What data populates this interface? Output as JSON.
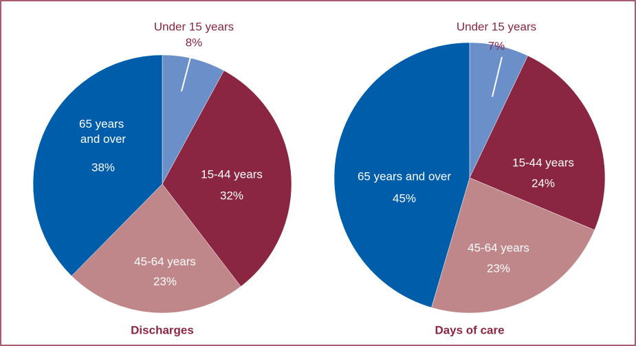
{
  "chart_data": [
    {
      "type": "pie",
      "title": "Discharges",
      "categories": [
        "Under 15 years",
        "15-44 years",
        "45-64 years",
        "65 years and over"
      ],
      "values": [
        8,
        32,
        23,
        38
      ],
      "value_labels": [
        "8%",
        "32%",
        "23%",
        "38%"
      ],
      "colors": [
        "#6a8fc9",
        "#8a2642",
        "#c0878b",
        "#005da9"
      ]
    },
    {
      "type": "pie",
      "title": "Days of care",
      "categories": [
        "Under 15 years",
        "15-44 years",
        "45-64 years",
        "65 years and over"
      ],
      "values": [
        7,
        24,
        23,
        45
      ],
      "value_labels": [
        "7%",
        "24%",
        "23%",
        "45%"
      ],
      "colors": [
        "#6a8fc9",
        "#8a2642",
        "#c0878b",
        "#005da9"
      ]
    }
  ]
}
